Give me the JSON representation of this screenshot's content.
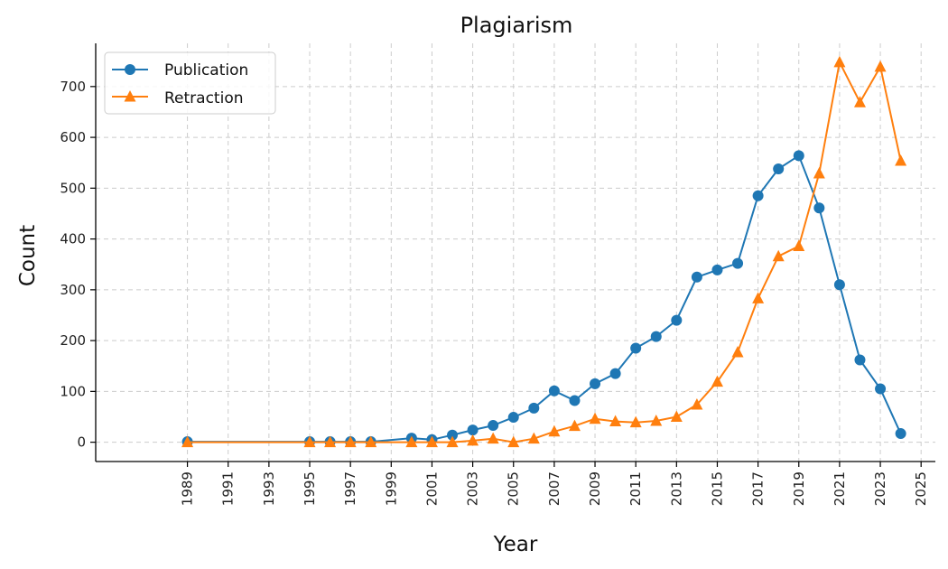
{
  "chart_data": {
    "type": "line",
    "title": "Plagiarism",
    "xlabel": "Year",
    "ylabel": "Count",
    "xlim": [
      1984.5,
      2025.7
    ],
    "ylim": [
      -38,
      785
    ],
    "x_ticks": [
      1989,
      1991,
      1993,
      1995,
      1997,
      1999,
      2001,
      2003,
      2005,
      2007,
      2009,
      2011,
      2013,
      2015,
      2017,
      2019,
      2021,
      2023,
      2025
    ],
    "y_ticks": [
      0,
      100,
      200,
      300,
      400,
      500,
      600,
      700
    ],
    "grid": true,
    "legend_position": "top-left",
    "series": [
      {
        "name": "Publication",
        "color": "#1f77b4",
        "marker": "circle",
        "x": [
          1989,
          1995,
          1996,
          1997,
          1998,
          2000,
          2001,
          2002,
          2003,
          2004,
          2005,
          2006,
          2007,
          2008,
          2009,
          2010,
          2011,
          2012,
          2013,
          2014,
          2015,
          2016,
          2017,
          2018,
          2019,
          2020,
          2021,
          2022,
          2023,
          2024
        ],
        "values": [
          1,
          1,
          1,
          1,
          1,
          8,
          5,
          14,
          24,
          33,
          49,
          67,
          101,
          82,
          115,
          135,
          185,
          208,
          240,
          325,
          339,
          352,
          485,
          538,
          564,
          461,
          310,
          162,
          105,
          17
        ]
      },
      {
        "name": "Retraction",
        "color": "#ff7f0e",
        "marker": "triangle",
        "x": [
          1989,
          1995,
          1996,
          1997,
          1998,
          2000,
          2001,
          2002,
          2003,
          2004,
          2005,
          2006,
          2007,
          2008,
          2009,
          2010,
          2011,
          2012,
          2013,
          2014,
          2015,
          2016,
          2017,
          2018,
          2019,
          2020,
          2021,
          2022,
          2023,
          2024
        ],
        "values": [
          0,
          0,
          0,
          0,
          0,
          0,
          0,
          0,
          3,
          7,
          0,
          7,
          21,
          32,
          46,
          41,
          39,
          42,
          50,
          74,
          119,
          177,
          283,
          366,
          386,
          529,
          748,
          669,
          739,
          554
        ]
      }
    ]
  }
}
